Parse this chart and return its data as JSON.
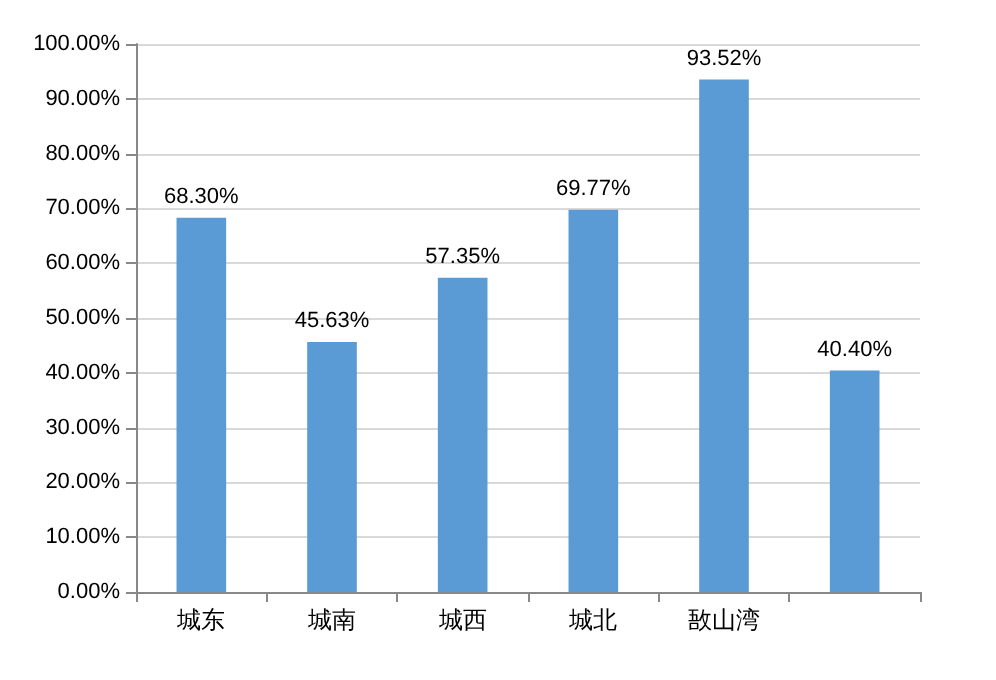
{
  "chart_data": {
    "type": "bar",
    "categories": [
      "城东",
      "城南",
      "城西",
      "城北",
      "敔山湾",
      null
    ],
    "values": [
      68.3,
      45.63,
      57.35,
      69.77,
      93.52,
      40.4
    ],
    "value_labels": [
      "68.30%",
      "45.63%",
      "57.35%",
      "69.77%",
      "93.52%",
      "40.40%"
    ],
    "color": "#5b9bd5",
    "ylim": [
      0,
      100
    ],
    "yticks": [
      {
        "value": 0,
        "label": "0.00%"
      },
      {
        "value": 10,
        "label": "10.00%"
      },
      {
        "value": 20,
        "label": "20.00%"
      },
      {
        "value": 30,
        "label": "30.00%"
      },
      {
        "value": 40,
        "label": "40.00%"
      },
      {
        "value": 50,
        "label": "50.00%"
      },
      {
        "value": 60,
        "label": "60.00%"
      },
      {
        "value": 70,
        "label": "70.00%"
      },
      {
        "value": 80,
        "label": "80.00%"
      },
      {
        "value": 90,
        "label": "90.00%"
      },
      {
        "value": 100,
        "label": "100.00%"
      }
    ],
    "grid": true
  }
}
